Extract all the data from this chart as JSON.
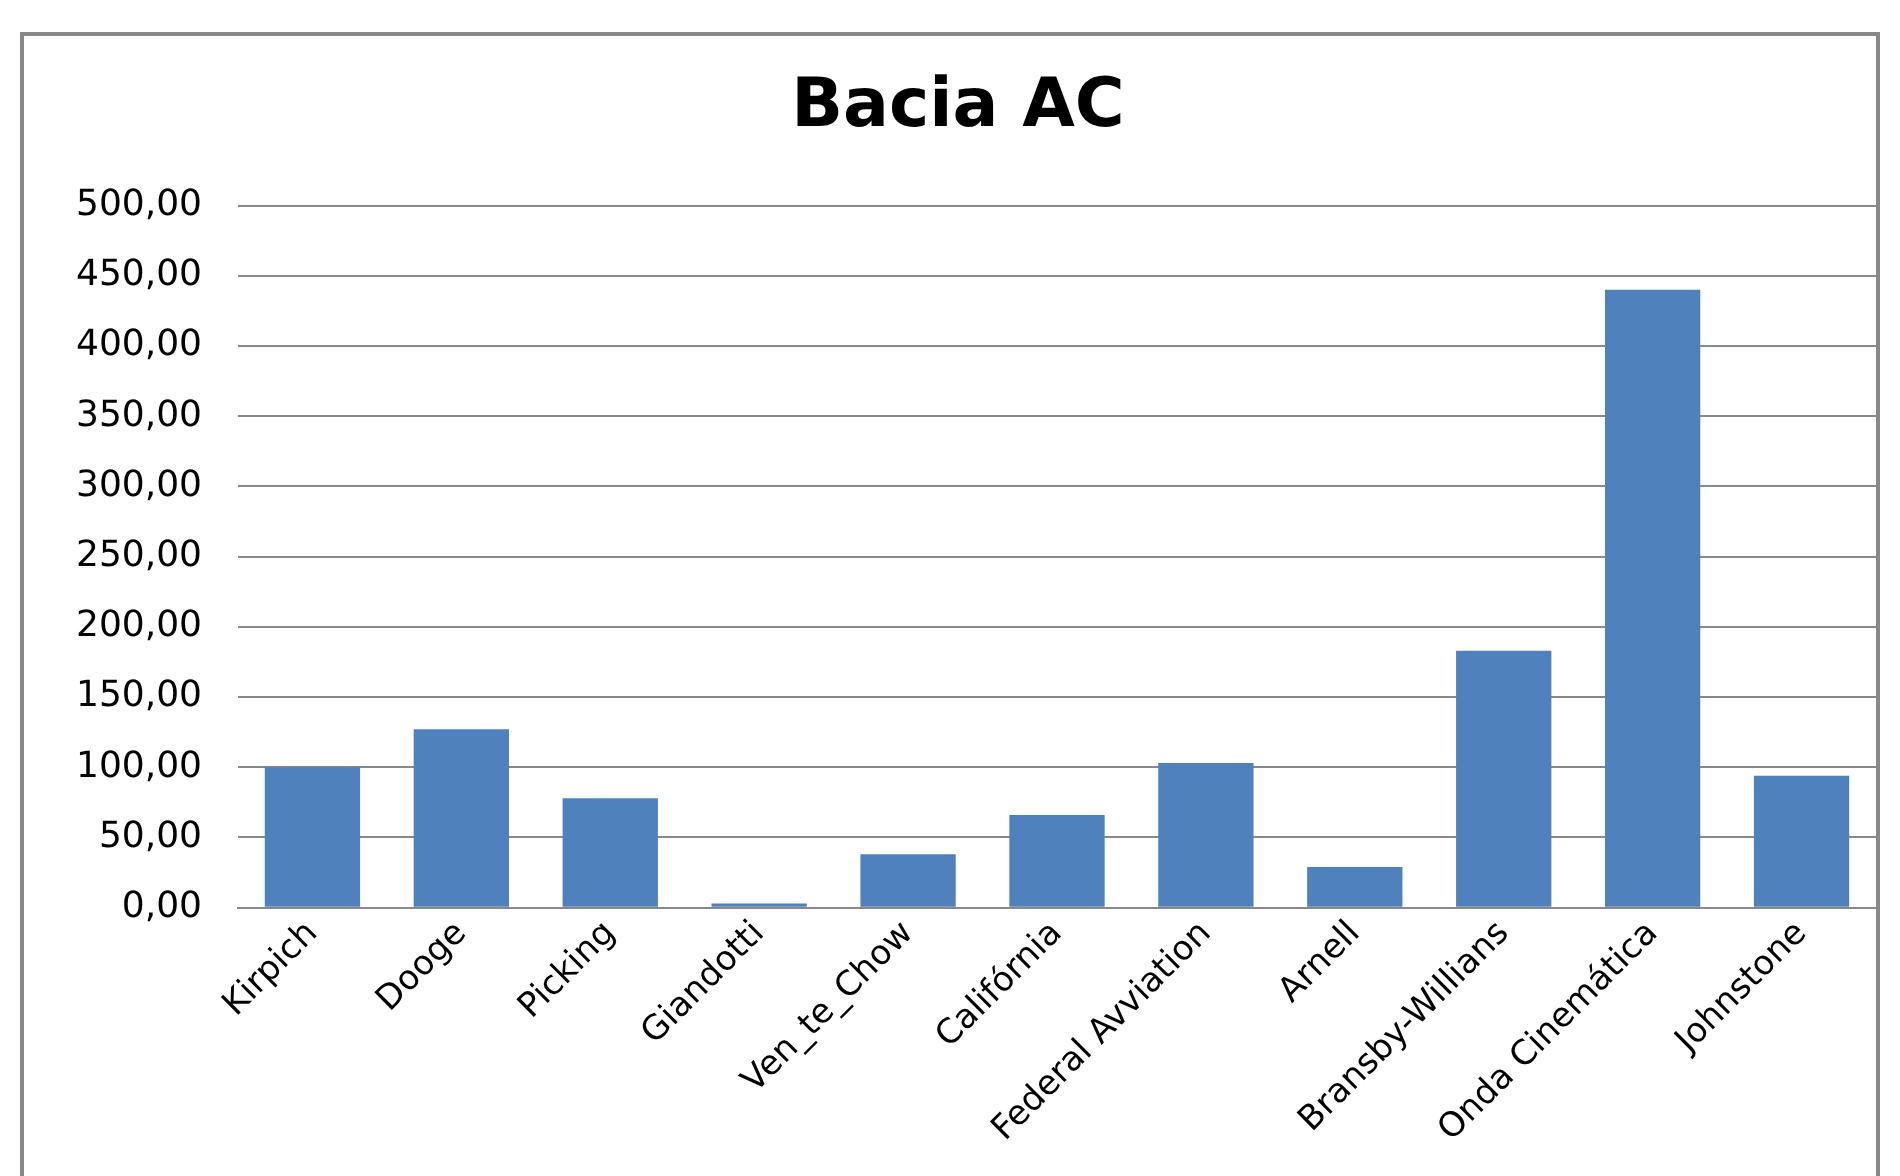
{
  "chart_data": {
    "type": "bar",
    "title": "Bacia AC",
    "categories": [
      "Kirpich",
      "Dooge",
      "Picking",
      "Giandotti",
      "Ven_te_Chow",
      "Califórnia",
      "Federal Avviation",
      "Arnell",
      "Bransby-Willians",
      "Onda Cinemática",
      "Johnstone"
    ],
    "values": [
      100,
      127,
      78,
      3,
      38,
      66,
      103,
      29,
      183,
      440,
      94
    ],
    "color": "#4f81bd",
    "ylim": [
      0,
      500
    ],
    "yticks": [
      {
        "value": 0,
        "label": "0,00"
      },
      {
        "value": 50,
        "label": "50,00"
      },
      {
        "value": 100,
        "label": "100,00"
      },
      {
        "value": 150,
        "label": "150,00"
      },
      {
        "value": 200,
        "label": "200,00"
      },
      {
        "value": 250,
        "label": "250,00"
      },
      {
        "value": 300,
        "label": "300,00"
      },
      {
        "value": 350,
        "label": "350,00"
      },
      {
        "value": 400,
        "label": "400,00"
      },
      {
        "value": 450,
        "label": "450,00"
      },
      {
        "value": 500,
        "label": "500,00"
      }
    ],
    "grid": "y",
    "legend": false
  }
}
